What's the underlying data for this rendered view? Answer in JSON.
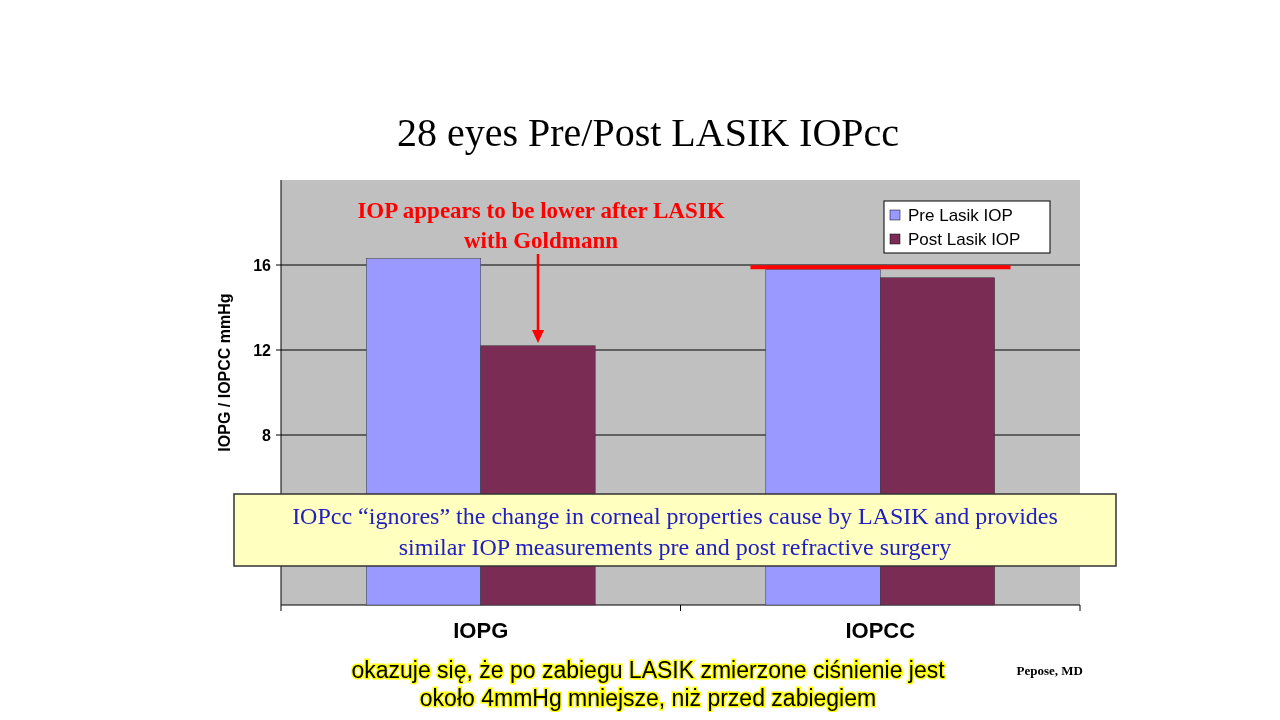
{
  "chart_data": {
    "type": "bar",
    "title": "28 eyes Pre/Post LASIK IOPcc",
    "ylabel": "IOPG / IOPCC mmHg",
    "categories": [
      "IOPG",
      "IOPCC"
    ],
    "series": [
      {
        "name": "Pre Lasik IOP",
        "color": "#9999ff",
        "values": [
          16.3,
          15.8
        ]
      },
      {
        "name": "Post Lasik IOP",
        "color": "#7b2c55",
        "values": [
          12.2,
          15.4
        ]
      }
    ],
    "ylim": [
      0,
      20
    ],
    "yticks": [
      8,
      12,
      16
    ],
    "grid": "y",
    "legend": "top right",
    "ref_lines": [
      {
        "axis": "y",
        "value": 15.9,
        "color": "#ff0000"
      }
    ],
    "annotations": [
      "IOP appears to be lower after LASIK\nwith Goldmann",
      "IOPcc “ignores” the change in corneal properties cause by LASIK and provides\nsimilar IOP measurements pre and post refractive surgery",
      "Pepose, MD",
      "okazuje się, że po zabiegu LASIK zmierzone ciśnienie jest\nokoło 4mmHg mniejsze, niż przed zabiegiem"
    ]
  }
}
